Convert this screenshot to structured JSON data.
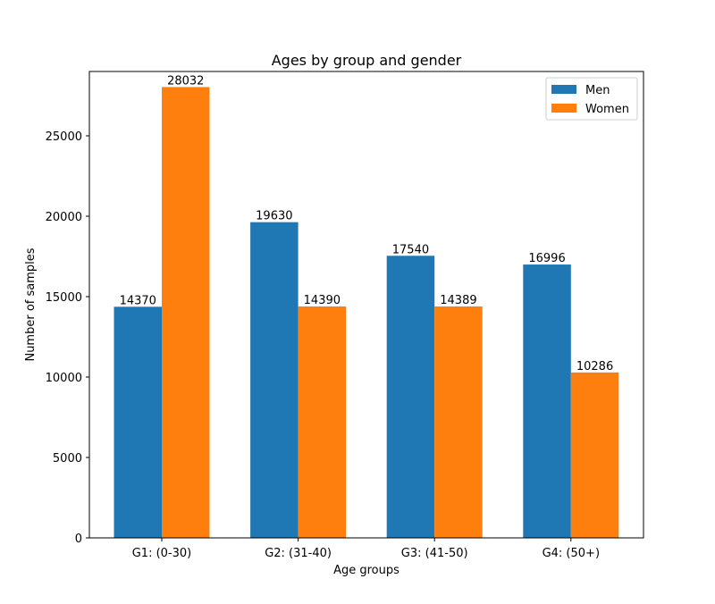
{
  "chart_data": {
    "type": "bar",
    "title": "Ages by group and gender",
    "xlabel": "Age groups",
    "ylabel": "Number of samples",
    "categories": [
      "G1: (0-30)",
      "G2: (31-40)",
      "G3: (41-50)",
      "G4: (50+)"
    ],
    "series": [
      {
        "name": "Men",
        "color": "#1f77b4",
        "values": [
          14370,
          19630,
          17540,
          16996
        ]
      },
      {
        "name": "Women",
        "color": "#ff7f0e",
        "values": [
          28032,
          14390,
          14389,
          10286
        ]
      }
    ],
    "ylim": [
      0,
      29000
    ],
    "yticks": [
      0,
      5000,
      10000,
      15000,
      20000,
      25000
    ],
    "grid": false,
    "legend_position": "top-right",
    "bar_value_labels": true
  }
}
